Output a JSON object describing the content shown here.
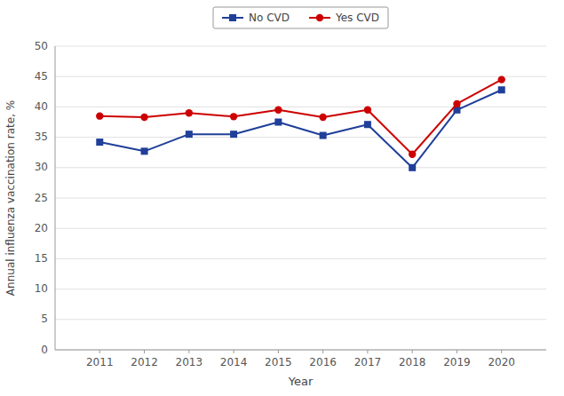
{
  "chart_data": {
    "type": "line",
    "x_label": "Year",
    "y_label": "Annual influenza vaccination rate, %",
    "x": [
      2011,
      2012,
      2013,
      2014,
      2015,
      2016,
      2017,
      2018,
      2019,
      2020
    ],
    "xlim": [
      2010,
      2021
    ],
    "xticks": [
      2011,
      2012,
      2013,
      2014,
      2015,
      2016,
      2017,
      2018,
      2019,
      2020
    ],
    "ylim": [
      0,
      50
    ],
    "yticks": [
      0,
      5,
      10,
      15,
      20,
      25,
      30,
      35,
      40,
      45,
      50
    ],
    "grid": true,
    "legend": "top",
    "series": [
      {
        "name": "No CVD",
        "color": "#1f3f99",
        "marker": "square",
        "values": [
          34.2,
          32.7,
          35.5,
          35.5,
          37.5,
          35.3,
          37.1,
          30.0,
          39.5,
          42.8
        ]
      },
      {
        "name": "Yes CVD",
        "color": "#cc0000",
        "marker": "circle",
        "values": [
          38.5,
          38.3,
          39.0,
          38.4,
          39.5,
          38.3,
          39.5,
          32.2,
          40.5,
          44.5
        ]
      }
    ]
  }
}
